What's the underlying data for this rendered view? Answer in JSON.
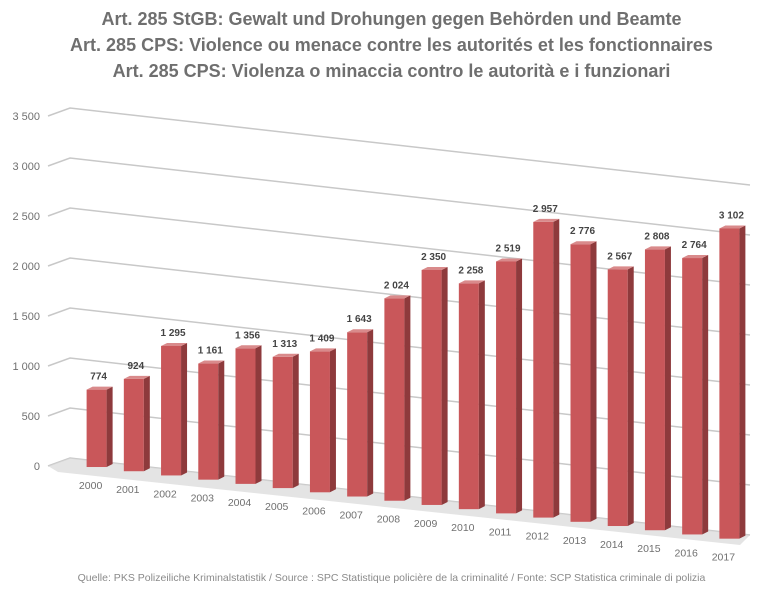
{
  "chart_data": {
    "type": "bar",
    "title_lines": [
      "Art. 285 StGB: Gewalt und Drohungen gegen Behörden und Beamte",
      "Art. 285 CPS: Violence ou menace contre les autorités et les fonctionnaires",
      "Art. 285 CPS: Violenza o minaccia contro le autorità e i funzionari"
    ],
    "categories": [
      "2000",
      "2001",
      "2002",
      "2003",
      "2004",
      "2005",
      "2006",
      "2007",
      "2008",
      "2009",
      "2010",
      "2011",
      "2012",
      "2013",
      "2014",
      "2015",
      "2016",
      "2017"
    ],
    "values": [
      774,
      924,
      1295,
      1161,
      1356,
      1313,
      1409,
      1643,
      2024,
      2350,
      2258,
      2519,
      2957,
      2776,
      2567,
      2808,
      2764,
      3102
    ],
    "value_labels": [
      "774",
      "924",
      "1 295",
      "1 161",
      "1 356",
      "1 313",
      "1 409",
      "1 643",
      "2 024",
      "2 350",
      "2 258",
      "2 519",
      "2 957",
      "2 776",
      "2 567",
      "2 808",
      "2 764",
      "3 102"
    ],
    "yticks": [
      0,
      500,
      1000,
      1500,
      2000,
      2500,
      3000,
      3500
    ],
    "ytick_labels": [
      "0",
      "500",
      "1 000",
      "1 500",
      "2 000",
      "2 500",
      "3 000",
      "3 500"
    ],
    "ylim": [
      0,
      3500
    ],
    "xlabel": "",
    "ylabel": "",
    "grid": true,
    "legend": "none",
    "style": "3d-column",
    "bar_color": "#c9575a",
    "source": "Quelle: PKS Polizeiliche Kriminalstatistik / Source : SPC Statistique policière de la criminalité / Fonte: SCP Statistica criminale di polizia"
  }
}
